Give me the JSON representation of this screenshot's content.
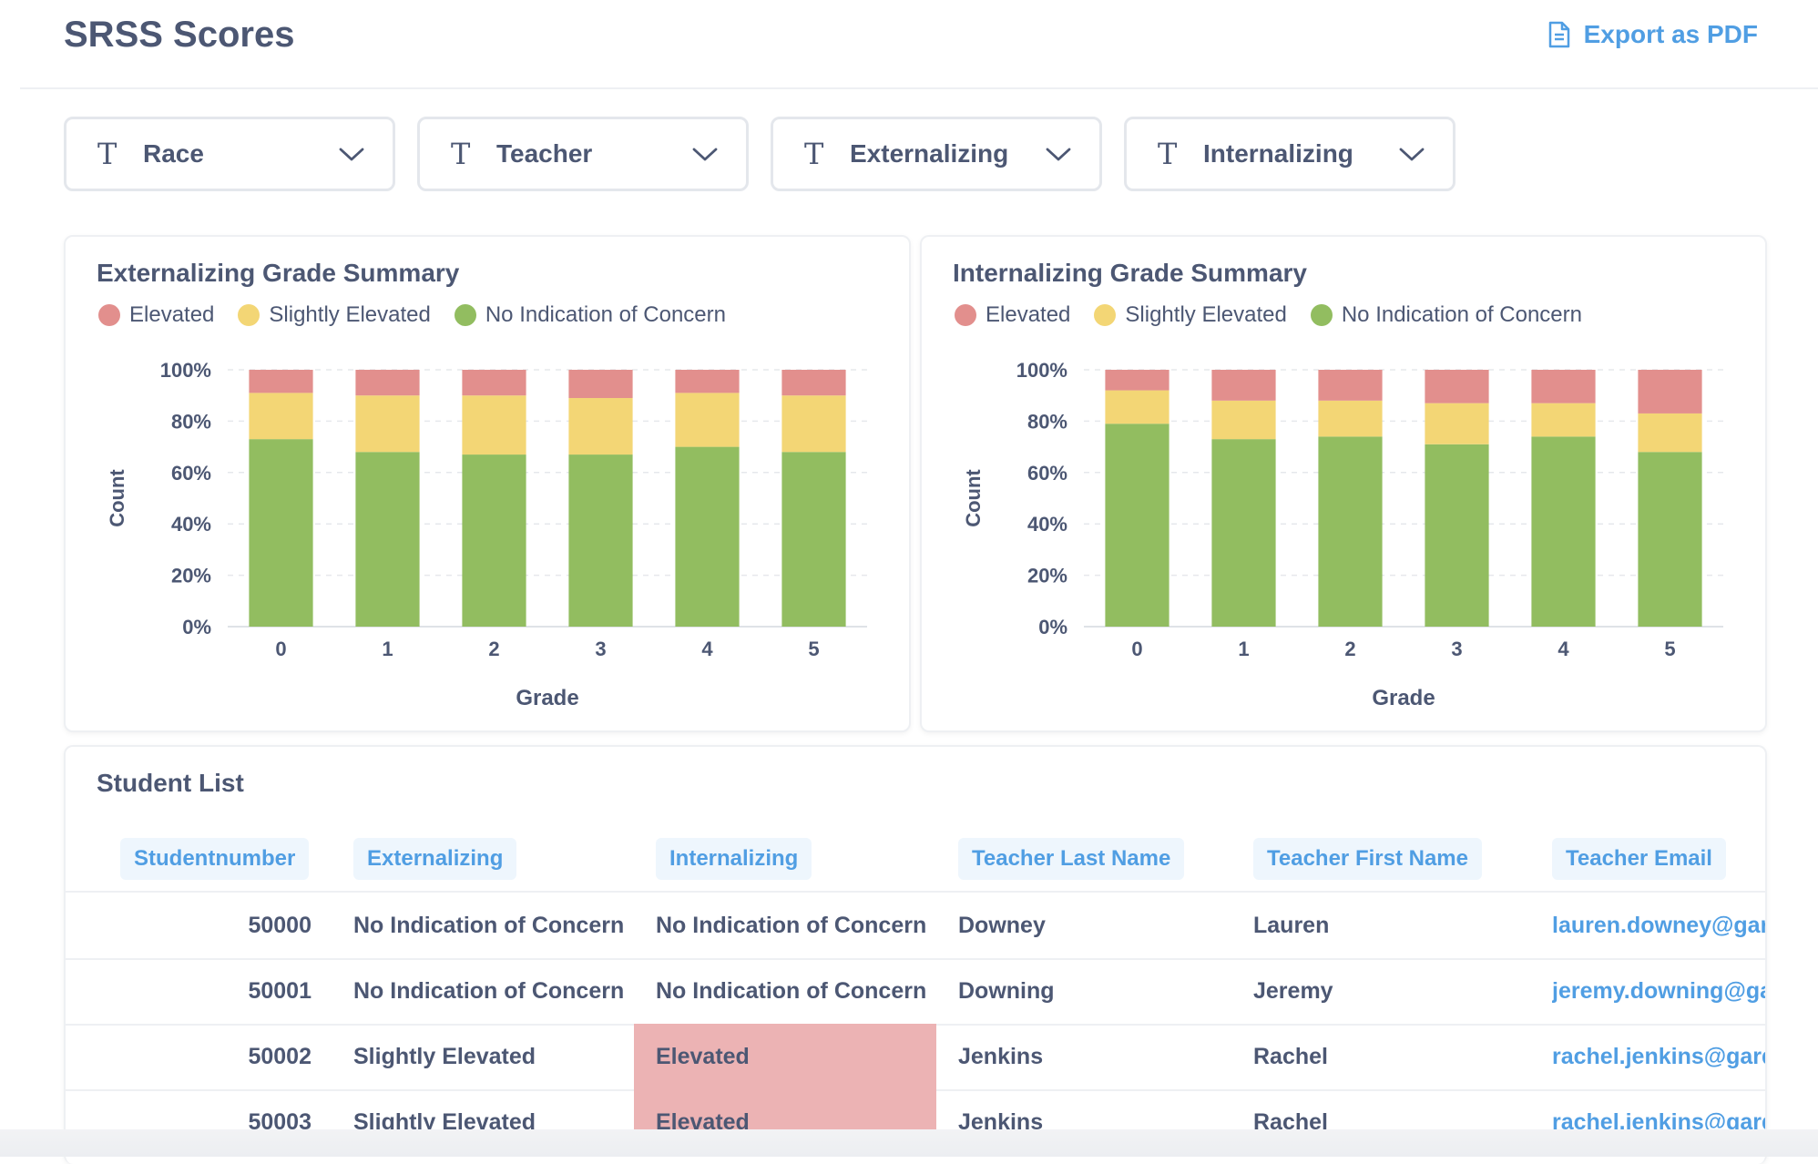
{
  "header": {
    "title": "SRSS Scores",
    "export_label": "Export as PDF"
  },
  "filters": [
    {
      "label": "Race",
      "icon": "text-type-icon"
    },
    {
      "label": "Teacher",
      "icon": "text-type-icon"
    },
    {
      "label": "Externalizing",
      "icon": "text-type-icon"
    },
    {
      "label": "Internalizing",
      "icon": "text-type-icon"
    }
  ],
  "legend": [
    {
      "label": "Elevated",
      "color": "#e28f8d"
    },
    {
      "label": "Slightly Elevated",
      "color": "#f3d675"
    },
    {
      "label": "No Indication of Concern",
      "color": "#92bd60"
    }
  ],
  "chart_data": [
    {
      "type": "bar",
      "stacked": "percent",
      "title": "Externalizing Grade Summary",
      "xlabel": "Grade",
      "ylabel": "Count",
      "ylim": [
        0,
        100
      ],
      "yticks": [
        "0%",
        "20%",
        "40%",
        "60%",
        "80%",
        "100%"
      ],
      "categories": [
        "0",
        "1",
        "2",
        "3",
        "4",
        "5"
      ],
      "grid": true,
      "legend_position": "top-left",
      "series": [
        {
          "name": "No Indication of Concern",
          "color": "#92bd60",
          "values": [
            73,
            68,
            67,
            67,
            70,
            68
          ]
        },
        {
          "name": "Slightly Elevated",
          "color": "#f3d675",
          "values": [
            18,
            22,
            23,
            22,
            21,
            22
          ]
        },
        {
          "name": "Elevated",
          "color": "#e28f8d",
          "values": [
            9,
            10,
            10,
            11,
            9,
            10
          ]
        }
      ]
    },
    {
      "type": "bar",
      "stacked": "percent",
      "title": "Internalizing Grade Summary",
      "xlabel": "Grade",
      "ylabel": "Count",
      "ylim": [
        0,
        100
      ],
      "yticks": [
        "0%",
        "20%",
        "40%",
        "60%",
        "80%",
        "100%"
      ],
      "categories": [
        "0",
        "1",
        "2",
        "3",
        "4",
        "5"
      ],
      "grid": true,
      "legend_position": "top-left",
      "series": [
        {
          "name": "No Indication of Concern",
          "color": "#92bd60",
          "values": [
            79,
            73,
            74,
            71,
            74,
            68
          ]
        },
        {
          "name": "Slightly Elevated",
          "color": "#f3d675",
          "values": [
            13,
            15,
            14,
            16,
            13,
            15
          ]
        },
        {
          "name": "Elevated",
          "color": "#e28f8d",
          "values": [
            8,
            12,
            12,
            13,
            13,
            17
          ]
        }
      ]
    }
  ],
  "table": {
    "title": "Student List",
    "columns": [
      "Studentnumber",
      "Externalizing",
      "Internalizing",
      "Teacher Last Name",
      "Teacher First Name",
      "Teacher Email"
    ],
    "rows": [
      [
        "50000",
        "No Indication of Concern",
        "No Indication of Concern",
        "Downey",
        "Lauren",
        "lauren.downey@gard"
      ],
      [
        "50001",
        "No Indication of Concern",
        "No Indication of Concern",
        "Downing",
        "Jeremy",
        "jeremy.downing@gar"
      ],
      [
        "50002",
        "Slightly Elevated",
        "Elevated",
        "Jenkins",
        "Rachel",
        "rachel.jenkins@garde"
      ],
      [
        "50003",
        "Slightly Elevated",
        "Elevated",
        "Jenkins",
        "Rachel",
        "rachel.jenkins@garde"
      ]
    ],
    "highlight_color": "#ecb3b4"
  }
}
